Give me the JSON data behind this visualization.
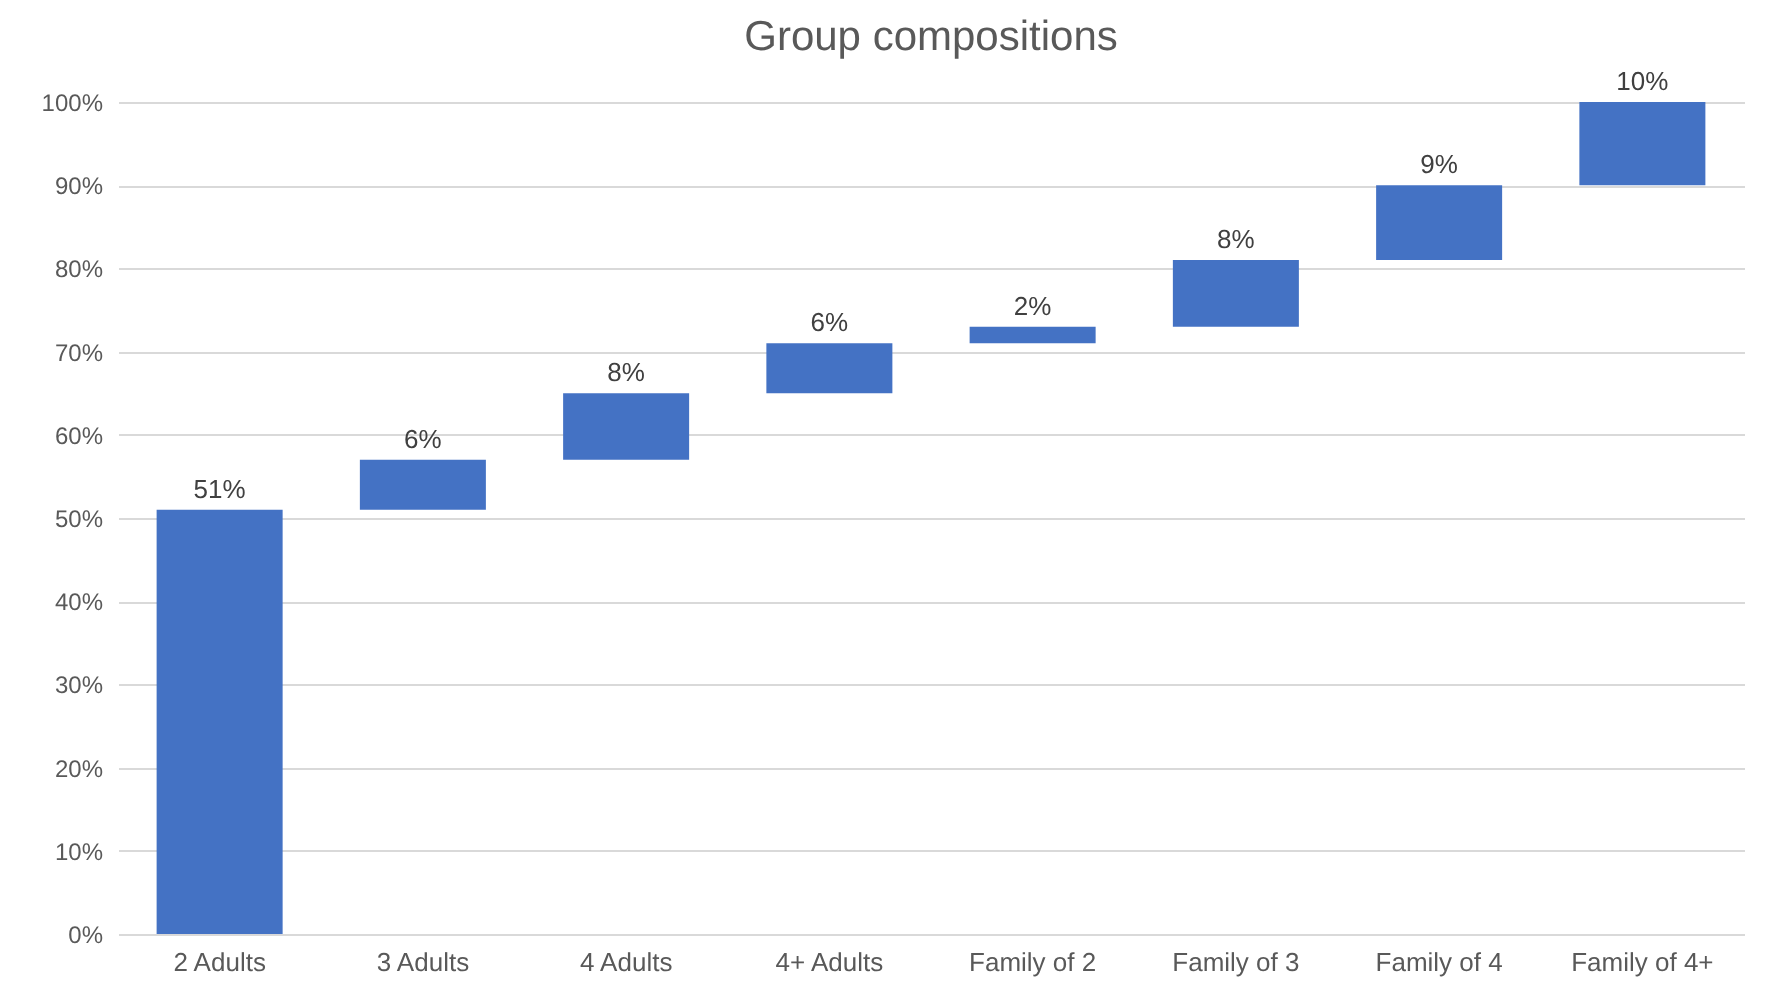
{
  "chart_data": {
    "type": "bar",
    "title": "Group compositions",
    "categories": [
      "2 Adults",
      "3 Adults",
      "4 Adults",
      "4+ Adults",
      "Family of 2",
      "Family of 3",
      "Family of 4",
      "Family of 4+"
    ],
    "values": [
      51,
      6,
      8,
      6,
      2,
      8,
      9,
      10
    ],
    "base": [
      0,
      51,
      57,
      65,
      71,
      73,
      81,
      90
    ],
    "value_labels": [
      "51%",
      "6%",
      "8%",
      "6%",
      "2%",
      "8%",
      "9%",
      "10%"
    ],
    "color": "#4472c4",
    "ylim": [
      0,
      100
    ],
    "yticks": [
      {
        "value": 0,
        "label": "0%"
      },
      {
        "value": 10,
        "label": "10%"
      },
      {
        "value": 20,
        "label": "20%"
      },
      {
        "value": 30,
        "label": "30%"
      },
      {
        "value": 40,
        "label": "40%"
      },
      {
        "value": 50,
        "label": "50%"
      },
      {
        "value": 60,
        "label": "60%"
      },
      {
        "value": 70,
        "label": "70%"
      },
      {
        "value": 80,
        "label": "80%"
      },
      {
        "value": 90,
        "label": "90%"
      },
      {
        "value": 100,
        "label": "100%"
      }
    ],
    "grid": "y"
  }
}
